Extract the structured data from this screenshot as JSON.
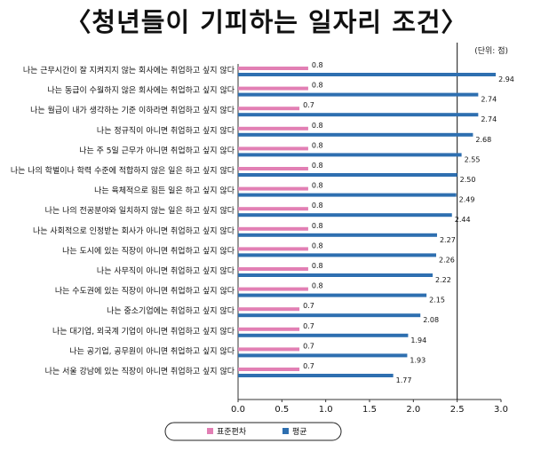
{
  "chart_data": {
    "type": "bar",
    "title": "〈청년들이 기피하는 일자리 조건〉",
    "unit_note": "(단위: 점)",
    "categories": [
      "나는 근무시간이 잘 지켜지지 않는 회사에는 취업하고 싶지 않다",
      "나는 동급이 수월하지 않은 회사에는 취업하고 싶지 않다",
      "나는 월급이 내가 생각하는 기준 이하라면 취업하고 싶지 않다",
      "나는 정규직이 아니면 취업하고 싶지 않다",
      "나는 주 5일 근무가 아니면 취업하고 싶지 않다",
      "나는 나의 학벌이나 학력 수준에 적합하지 않은 일은 하고 싶지 않다",
      "나는 육체적으로 힘든 일은 하고 싶지 않다",
      "나는 나의 전공분야와 일치하지 않는 일은 하고 싶지 않다",
      "나는 사회적으로 인정받는 회사가 아니면 취업하고 싶지 않다",
      "나는 도시에 있는 직장이 아니면 취업하고 싶지 않다",
      "나는 사무직이 아니면 취업하고 싶지 않다",
      "나는 수도권에 있는 직장이 아니면 취업하고 싶지 않다",
      "나는 중소기업에는 취업하고 싶지 않다",
      "나는 대기업, 외국계 기업이 아니면 취업하고 싶지 않다",
      "나는 공기업, 공무원이 아니면 취업하고 싶지 않다",
      "나는 서울 강남에 있는 직장이 아니면 취업하고 싶지 않다"
    ],
    "series": [
      {
        "name": "표준편차",
        "color": "#e27fb4",
        "values": [
          0.8,
          0.8,
          0.7,
          0.8,
          0.8,
          0.8,
          0.8,
          0.8,
          0.8,
          0.8,
          0.8,
          0.8,
          0.7,
          0.7,
          0.7,
          0.7
        ],
        "labels": [
          "0.8",
          "0.8",
          "0.7",
          "0.8",
          "0.8",
          "0.8",
          "0.8",
          "0.8",
          "0.8",
          "0.8",
          "0.8",
          "0.8",
          "0.7",
          "0.7",
          "0.7",
          "0.7"
        ]
      },
      {
        "name": "평균",
        "color": "#2e6fb0",
        "values": [
          2.94,
          2.74,
          2.74,
          2.68,
          2.55,
          2.5,
          2.49,
          2.44,
          2.27,
          2.26,
          2.22,
          2.15,
          2.08,
          1.94,
          1.93,
          1.77
        ],
        "labels": [
          "2.94",
          "2.74",
          "2.74",
          "2.68",
          "2.55",
          "2.50",
          "2.49",
          "2.44",
          "2.27",
          "2.26",
          "2.22",
          "2.15",
          "2.08",
          "1.94",
          "1.93",
          "1.77"
        ]
      }
    ],
    "xlim": [
      0,
      3.0
    ],
    "ticks": [
      "0.0",
      "0.5",
      "1.0",
      "1.5",
      "2.0",
      "2.5",
      "3.0"
    ],
    "reference_line": 2.5,
    "legend_placement": "bottom"
  }
}
